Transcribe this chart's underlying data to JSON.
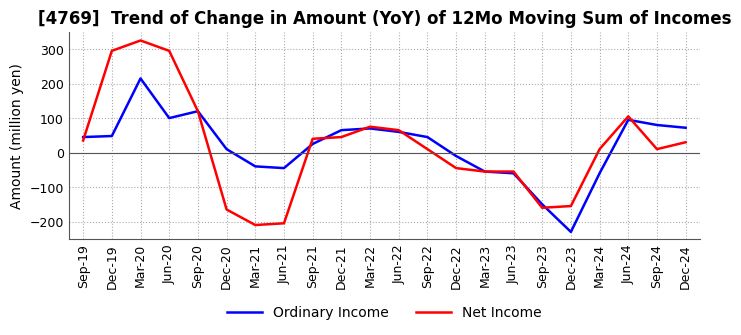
{
  "title": "[4769]  Trend of Change in Amount (YoY) of 12Mo Moving Sum of Incomes",
  "ylabel": "Amount (million yen)",
  "x_labels": [
    "Sep-19",
    "Dec-19",
    "Mar-20",
    "Jun-20",
    "Sep-20",
    "Dec-20",
    "Mar-21",
    "Jun-21",
    "Sep-21",
    "Dec-21",
    "Mar-22",
    "Jun-22",
    "Sep-22",
    "Dec-22",
    "Mar-23",
    "Jun-23",
    "Sep-23",
    "Dec-23",
    "Mar-24",
    "Jun-24",
    "Sep-24",
    "Dec-24"
  ],
  "ordinary_income": [
    45,
    48,
    215,
    100,
    120,
    10,
    -40,
    -45,
    25,
    65,
    70,
    60,
    45,
    -10,
    -55,
    -60,
    -150,
    -230,
    -60,
    95,
    80,
    72
  ],
  "net_income": [
    35,
    295,
    325,
    295,
    120,
    -165,
    -210,
    -205,
    40,
    45,
    75,
    65,
    10,
    -45,
    -55,
    -55,
    -160,
    -155,
    10,
    105,
    10,
    30
  ],
  "ordinary_income_color": "#0000ff",
  "net_income_color": "#ff0000",
  "ylim": [
    -250,
    350
  ],
  "yticks": [
    -200,
    -100,
    0,
    100,
    200,
    300
  ],
  "background_color": "#ffffff",
  "grid_color": "#aaaaaa",
  "title_fontsize": 12,
  "label_fontsize": 10,
  "tick_fontsize": 9
}
